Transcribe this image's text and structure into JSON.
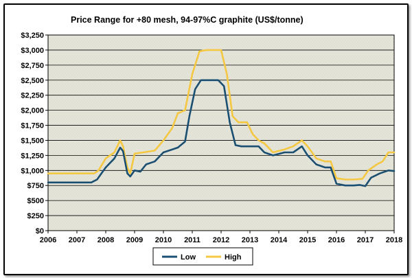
{
  "chart_data": {
    "type": "line",
    "title": "Price Range for +80 mesh, 94-97%C graphite (US$/tonne)",
    "xlabel": "",
    "ylabel": "",
    "xlim": [
      2006,
      2018
    ],
    "ylim": [
      0,
      3250
    ],
    "x_ticks": [
      "2006",
      "2007",
      "2008",
      "2009",
      "2010",
      "2011",
      "2012",
      "2013",
      "2014",
      "2015",
      "2016",
      "2017",
      "2018"
    ],
    "y_ticks": [
      "$0",
      "$250",
      "$500",
      "$750",
      "$1,000",
      "$1,250",
      "$1,500",
      "$1,750",
      "$2,000",
      "$2,250",
      "$2,500",
      "$2,750",
      "$3,000",
      "$3,250"
    ],
    "grid": true,
    "legend_position": "bottom-center",
    "series": [
      {
        "name": "Low",
        "color": "#1b4f72",
        "points": [
          [
            2006.0,
            800
          ],
          [
            2007.5,
            800
          ],
          [
            2007.7,
            850
          ],
          [
            2008.0,
            1050
          ],
          [
            2008.3,
            1200
          ],
          [
            2008.5,
            1380
          ],
          [
            2008.6,
            1320
          ],
          [
            2008.75,
            950
          ],
          [
            2008.85,
            900
          ],
          [
            2009.0,
            1000
          ],
          [
            2009.2,
            980
          ],
          [
            2009.4,
            1100
          ],
          [
            2009.7,
            1150
          ],
          [
            2010.0,
            1300
          ],
          [
            2010.5,
            1380
          ],
          [
            2010.75,
            1480
          ],
          [
            2010.9,
            1900
          ],
          [
            2011.1,
            2350
          ],
          [
            2011.3,
            2500
          ],
          [
            2011.9,
            2500
          ],
          [
            2012.1,
            2400
          ],
          [
            2012.3,
            1800
          ],
          [
            2012.5,
            1420
          ],
          [
            2012.7,
            1400
          ],
          [
            2013.3,
            1400
          ],
          [
            2013.5,
            1300
          ],
          [
            2013.8,
            1250
          ],
          [
            2014.2,
            1300
          ],
          [
            2014.5,
            1300
          ],
          [
            2014.8,
            1400
          ],
          [
            2015.0,
            1250
          ],
          [
            2015.3,
            1100
          ],
          [
            2015.6,
            1050
          ],
          [
            2015.8,
            1050
          ],
          [
            2016.0,
            780
          ],
          [
            2016.3,
            750
          ],
          [
            2016.6,
            750
          ],
          [
            2016.8,
            760
          ],
          [
            2017.0,
            740
          ],
          [
            2017.2,
            880
          ],
          [
            2017.5,
            950
          ],
          [
            2017.8,
            1000
          ],
          [
            2018.0,
            990
          ]
        ]
      },
      {
        "name": "High",
        "color": "#f4c842",
        "points": [
          [
            2006.0,
            950
          ],
          [
            2007.6,
            950
          ],
          [
            2007.75,
            1000
          ],
          [
            2008.0,
            1200
          ],
          [
            2008.3,
            1300
          ],
          [
            2008.5,
            1500
          ],
          [
            2008.6,
            1400
          ],
          [
            2008.75,
            1050
          ],
          [
            2008.85,
            950
          ],
          [
            2009.0,
            1280
          ],
          [
            2009.3,
            1300
          ],
          [
            2009.7,
            1330
          ],
          [
            2010.0,
            1500
          ],
          [
            2010.3,
            1700
          ],
          [
            2010.5,
            1950
          ],
          [
            2010.75,
            2000
          ],
          [
            2011.0,
            2600
          ],
          [
            2011.25,
            2980
          ],
          [
            2011.5,
            3000
          ],
          [
            2012.0,
            3000
          ],
          [
            2012.2,
            2600
          ],
          [
            2012.4,
            1900
          ],
          [
            2012.6,
            1800
          ],
          [
            2012.9,
            1800
          ],
          [
            2013.1,
            1600
          ],
          [
            2013.3,
            1500
          ],
          [
            2013.5,
            1450
          ],
          [
            2013.8,
            1300
          ],
          [
            2014.2,
            1350
          ],
          [
            2014.5,
            1400
          ],
          [
            2014.8,
            1500
          ],
          [
            2015.0,
            1400
          ],
          [
            2015.3,
            1200
          ],
          [
            2015.6,
            1150
          ],
          [
            2015.8,
            1150
          ],
          [
            2016.0,
            870
          ],
          [
            2016.3,
            850
          ],
          [
            2016.6,
            850
          ],
          [
            2016.9,
            860
          ],
          [
            2017.1,
            1000
          ],
          [
            2017.4,
            1100
          ],
          [
            2017.6,
            1150
          ],
          [
            2017.8,
            1300
          ],
          [
            2018.0,
            1300
          ]
        ]
      }
    ],
    "colors": {
      "plot_background": "#e4e4d9",
      "gridline": "#000000",
      "frame": "#000000"
    }
  }
}
